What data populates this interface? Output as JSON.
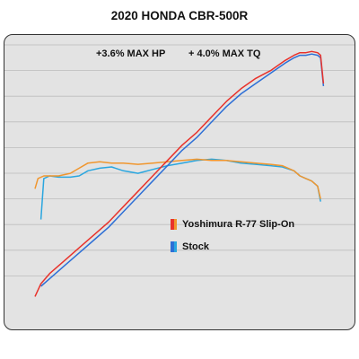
{
  "chart_data": {
    "type": "line",
    "title": "2020 HONDA CBR-500R",
    "annotations": [
      "+3.6% MAX HP",
      "+ 4.0% MAX TQ"
    ],
    "xlabel": "",
    "ylabel": "",
    "xlim": [
      0,
      100
    ],
    "ylim": [
      0,
      100
    ],
    "grid": "horizontal",
    "legend_position": "center",
    "series": [
      {
        "name": "Yoshimura R-77 Slip-On",
        "role": "hp",
        "color": "#e8322b",
        "x": [
          0,
          2,
          5,
          10,
          15,
          20,
          25,
          30,
          35,
          40,
          45,
          50,
          55,
          60,
          65,
          70,
          75,
          80,
          85,
          88,
          90,
          92,
          94,
          96,
          97,
          98
        ],
        "values": [
          3,
          8,
          12,
          17,
          22,
          27,
          32,
          38,
          44,
          50,
          56,
          62,
          67,
          73,
          79,
          84,
          88,
          91,
          95,
          97,
          98,
          98,
          98.5,
          98,
          97,
          86
        ]
      },
      {
        "name": "Stock",
        "role": "hp",
        "color": "#2d6fd6",
        "x": [
          2,
          5,
          10,
          15,
          20,
          25,
          30,
          35,
          40,
          45,
          50,
          55,
          60,
          65,
          70,
          75,
          80,
          85,
          88,
          90,
          92,
          94,
          96,
          97,
          98
        ],
        "values": [
          7,
          10,
          15,
          20,
          25,
          30,
          36,
          42,
          48,
          54,
          60,
          65,
          71,
          77,
          82,
          86,
          90,
          94,
          96,
          97,
          97,
          97.5,
          97,
          96,
          85
        ]
      },
      {
        "name": "Yoshimura R-77 Slip-On",
        "role": "torque",
        "color": "#f0962e",
        "x": [
          0,
          1,
          3,
          8,
          12,
          15,
          18,
          22,
          26,
          30,
          35,
          40,
          45,
          50,
          55,
          60,
          65,
          70,
          75,
          80,
          84,
          88,
          90,
          92,
          94,
          96,
          97
        ],
        "values": [
          45,
          49,
          50,
          50,
          51,
          53,
          55,
          55.5,
          55,
          55,
          54.5,
          55,
          55.5,
          56,
          56.5,
          56,
          56,
          55.5,
          55,
          54.5,
          54,
          52,
          50,
          49,
          48,
          46,
          41
        ]
      },
      {
        "name": "Stock",
        "role": "torque",
        "color": "#2aa6df",
        "x": [
          2,
          3,
          5,
          8,
          12,
          15,
          18,
          22,
          26,
          30,
          35,
          40,
          45,
          50,
          55,
          60,
          65,
          70,
          75,
          80,
          84,
          88,
          90,
          92,
          94,
          96,
          97
        ],
        "values": [
          33,
          49,
          50,
          49.5,
          49.5,
          50,
          52,
          53,
          53.5,
          52,
          51,
          52.5,
          54,
          55,
          56,
          56.5,
          56,
          55,
          54.5,
          54,
          53.5,
          52,
          50,
          49,
          48,
          46,
          40
        ]
      }
    ]
  }
}
